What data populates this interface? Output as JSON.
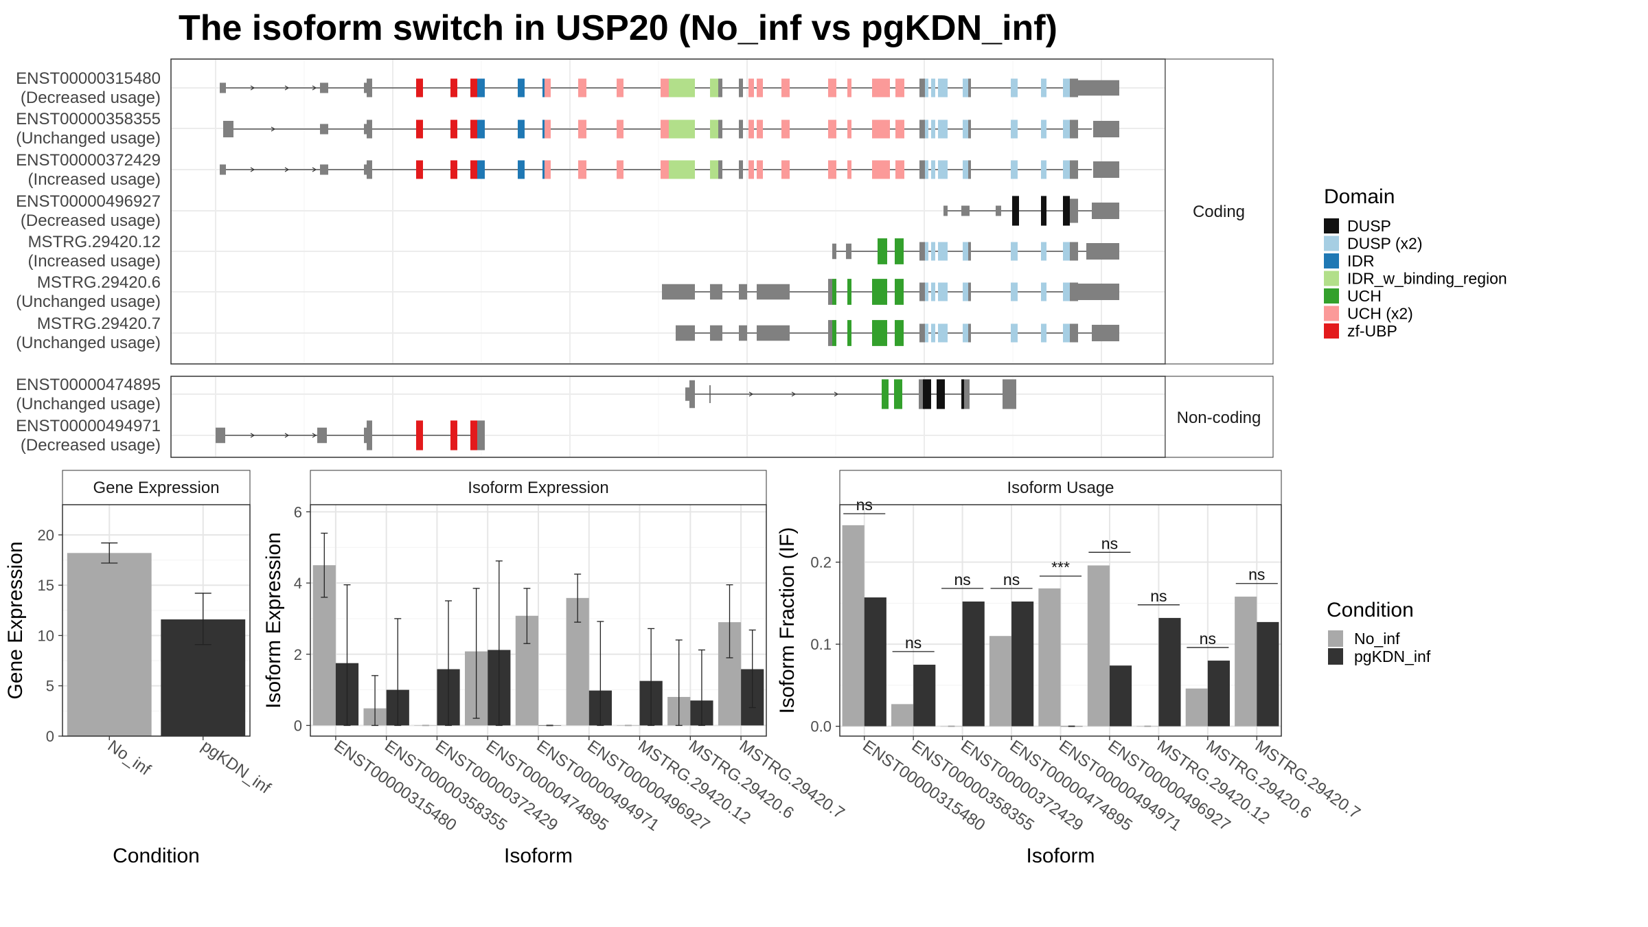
{
  "title": "The isoform switch in USP20 (No_inf vs pgKDN_inf)",
  "structure": {
    "coding_label": "Coding",
    "noncoding_label": "Non-coding",
    "coding_isoforms": [
      {
        "id": "ENST00000315480",
        "usage": "(Decreased usage)"
      },
      {
        "id": "ENST00000358355",
        "usage": "(Unchanged usage)"
      },
      {
        "id": "ENST00000372429",
        "usage": "(Increased usage)"
      },
      {
        "id": "ENST00000496927",
        "usage": "(Decreased usage)"
      },
      {
        "id": "MSTRG.29420.12",
        "usage": "(Increased usage)"
      },
      {
        "id": "MSTRG.29420.6",
        "usage": "(Unchanged usage)"
      },
      {
        "id": "MSTRG.29420.7",
        "usage": "(Unchanged usage)"
      }
    ],
    "noncoding_isoforms": [
      {
        "id": "ENST00000474895",
        "usage": "(Unchanged usage)"
      },
      {
        "id": "ENST00000494971",
        "usage": "(Decreased usage)"
      }
    ]
  },
  "domain_legend": {
    "title": "Domain",
    "items": [
      {
        "label": "DUSP",
        "color": "#111111"
      },
      {
        "label": "DUSP (x2)",
        "color": "#a6cee3"
      },
      {
        "label": "IDR",
        "color": "#1f78b4"
      },
      {
        "label": "IDR_w_binding_region",
        "color": "#b2df8a"
      },
      {
        "label": "UCH",
        "color": "#33a02c"
      },
      {
        "label": "UCH (x2)",
        "color": "#fb9a99"
      },
      {
        "label": "zf-UBP",
        "color": "#e31a1c"
      }
    ]
  },
  "condition_legend": {
    "title": "Condition",
    "items": [
      {
        "label": "No_inf",
        "color": "#a9a9a9"
      },
      {
        "label": "pgKDN_inf",
        "color": "#333333"
      }
    ]
  },
  "chart_data": [
    {
      "type": "bar",
      "title": "Gene Expression",
      "xlabel": "Condition",
      "ylabel": "Gene Expression",
      "categories": [
        "No_inf",
        "pgKDN_inf"
      ],
      "values": [
        18.2,
        11.6
      ],
      "err_low": [
        17.2,
        9.1
      ],
      "err_high": [
        19.2,
        14.2
      ],
      "ylim": [
        0,
        23
      ],
      "yticks": [
        0,
        5,
        10,
        15,
        20
      ]
    },
    {
      "type": "bar",
      "title": "Isoform Expression",
      "xlabel": "Isoform",
      "ylabel": "Isoform Expression",
      "categories": [
        "ENST00000315480",
        "ENST00000358355",
        "ENST00000372429",
        "ENST00000474895",
        "ENST00000494971",
        "ENST00000496927",
        "MSTRG.29420.12",
        "MSTRG.29420.6",
        "MSTRG.29420.7"
      ],
      "ylim": [
        -0.3,
        6.2
      ],
      "yticks": [
        0,
        2,
        4,
        6
      ],
      "series": [
        {
          "name": "No_inf",
          "values": [
            4.5,
            0.48,
            0,
            2.08,
            3.08,
            3.58,
            0,
            0.8,
            2.9
          ],
          "err_low": [
            3.6,
            0.0,
            0,
            0.2,
            2.3,
            2.9,
            0,
            0.0,
            1.9
          ],
          "err_high": [
            5.4,
            1.4,
            0,
            3.85,
            3.85,
            4.25,
            0,
            2.4,
            3.95
          ]
        },
        {
          "name": "pgKDN_inf",
          "values": [
            1.75,
            1.0,
            1.58,
            2.12,
            0,
            0.98,
            1.25,
            0.7,
            1.58
          ],
          "err_low": [
            0.0,
            0.0,
            0.0,
            0.0,
            0,
            0.0,
            0.0,
            0.0,
            0.5
          ],
          "err_high": [
            3.95,
            3.0,
            3.5,
            4.62,
            0,
            2.92,
            2.72,
            2.12,
            2.68
          ]
        }
      ]
    },
    {
      "type": "bar",
      "title": "Isoform Usage",
      "xlabel": "Isoform",
      "ylabel": "Isoform Fraction (IF)",
      "categories": [
        "ENST00000315480",
        "ENST00000358355",
        "ENST00000372429",
        "ENST00000474895",
        "ENST00000494971",
        "ENST00000496927",
        "MSTRG.29420.12",
        "MSTRG.29420.6",
        "MSTRG.29420.7"
      ],
      "ylim": [
        -0.012,
        0.27
      ],
      "yticks": [
        0.0,
        0.1,
        0.2
      ],
      "ytick_labels": [
        "0.0",
        "0.1",
        "0.2"
      ],
      "series": [
        {
          "name": "No_inf",
          "values": [
            0.245,
            0.027,
            0,
            0.11,
            0.168,
            0.196,
            0,
            0.046,
            0.158
          ]
        },
        {
          "name": "pgKDN_inf",
          "values": [
            0.157,
            0.075,
            0.152,
            0.152,
            0,
            0.074,
            0.132,
            0.08,
            0.127
          ]
        }
      ],
      "significance": [
        "ns",
        "ns",
        "ns",
        "ns",
        "***",
        "ns",
        "ns",
        "ns",
        "ns"
      ],
      "sig_level": [
        0.259,
        0.091,
        0.168,
        0.168,
        0.183,
        0.212,
        0.148,
        0.096,
        0.174
      ]
    }
  ]
}
